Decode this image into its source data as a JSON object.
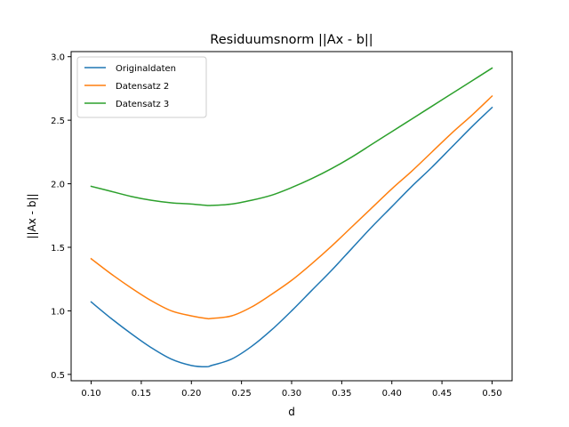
{
  "chart_data": {
    "type": "line",
    "title": "Residuumsnorm ||Ax - b||",
    "xlabel": "d",
    "ylabel": "||Ax - b||",
    "xlim": [
      0.08,
      0.52
    ],
    "ylim": [
      0.45,
      3.04
    ],
    "grid": false,
    "legend_position": "top-left",
    "xticks": [
      0.1,
      0.15,
      0.2,
      0.25,
      0.3,
      0.35,
      0.4,
      0.45,
      0.5
    ],
    "xtick_labels": [
      "0.10",
      "0.15",
      "0.20",
      "0.25",
      "0.30",
      "0.35",
      "0.40",
      "0.45",
      "0.50"
    ],
    "yticks": [
      0.5,
      1.0,
      1.5,
      2.0,
      2.5,
      3.0
    ],
    "ytick_labels": [
      "0.5",
      "1.0",
      "1.5",
      "2.0",
      "2.5",
      "3.0"
    ],
    "x": [
      0.1,
      0.12,
      0.14,
      0.16,
      0.18,
      0.2,
      0.215,
      0.22,
      0.24,
      0.26,
      0.28,
      0.3,
      0.32,
      0.34,
      0.36,
      0.38,
      0.4,
      0.42,
      0.44,
      0.46,
      0.48,
      0.5
    ],
    "series": [
      {
        "name": "Originaldaten",
        "color": "#1f77b4",
        "values": [
          1.07,
          0.94,
          0.82,
          0.71,
          0.62,
          0.57,
          0.56,
          0.57,
          0.62,
          0.72,
          0.85,
          1.0,
          1.16,
          1.32,
          1.49,
          1.66,
          1.82,
          1.98,
          2.13,
          2.29,
          2.45,
          2.6
        ]
      },
      {
        "name": "Datensatz 2",
        "color": "#ff7f0e",
        "values": [
          1.41,
          1.29,
          1.18,
          1.08,
          1.0,
          0.96,
          0.94,
          0.94,
          0.96,
          1.03,
          1.13,
          1.24,
          1.37,
          1.51,
          1.66,
          1.81,
          1.96,
          2.1,
          2.25,
          2.4,
          2.54,
          2.69
        ]
      },
      {
        "name": "Datensatz 3",
        "color": "#2ca02c",
        "values": [
          1.98,
          1.94,
          1.9,
          1.87,
          1.85,
          1.84,
          1.83,
          1.83,
          1.84,
          1.87,
          1.91,
          1.97,
          2.04,
          2.12,
          2.21,
          2.31,
          2.41,
          2.51,
          2.61,
          2.71,
          2.81,
          2.91
        ]
      }
    ]
  }
}
